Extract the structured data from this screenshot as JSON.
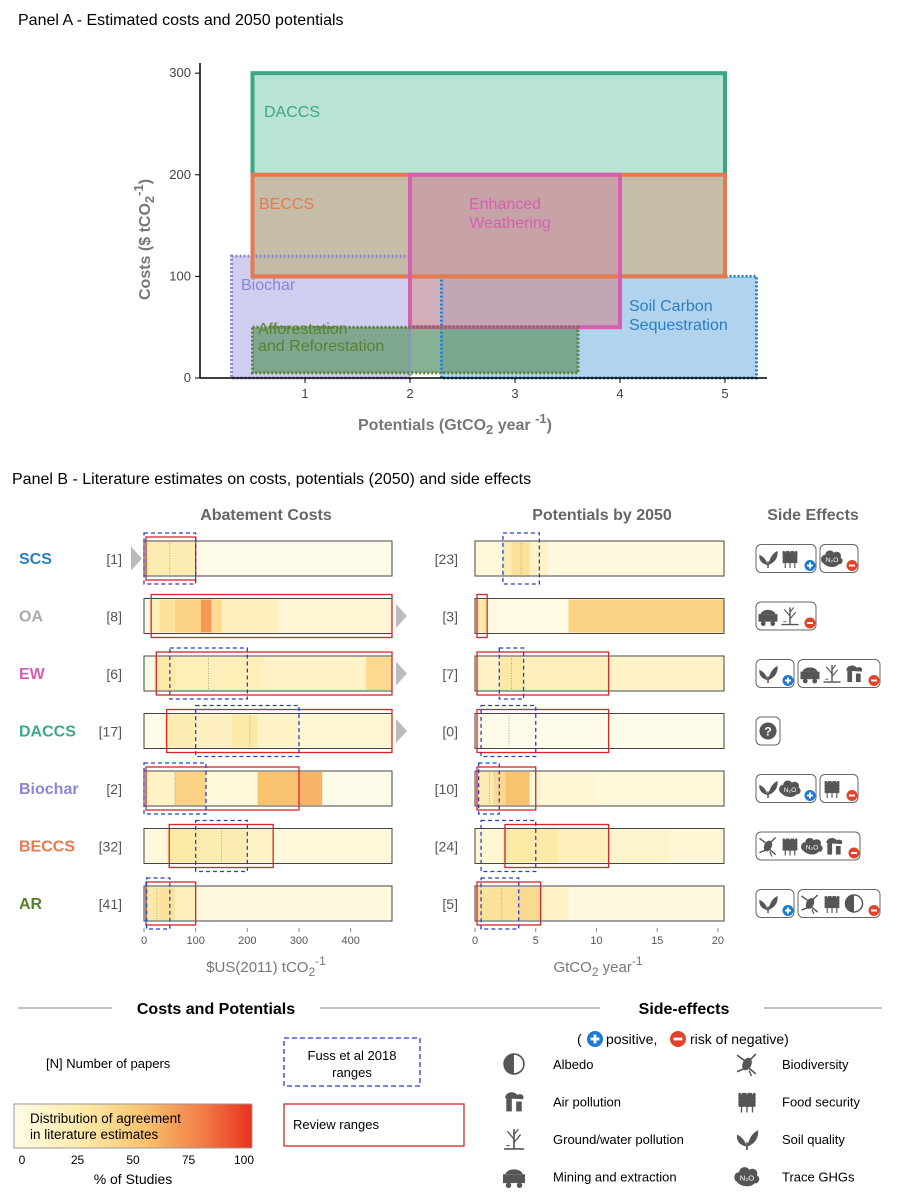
{
  "panel_a": {
    "title": "Panel A - Estimated costs and 2050 potentials",
    "xlabel_prefix": "Potentials (GtCO",
    "xlabel_sub": "2",
    "xlabel_suffix": " year ",
    "xlabel_sup": "-1",
    "xlabel_close": ")",
    "ylabel_prefix": "Costs ($ tCO",
    "ylabel_sub": "2",
    "ylabel_sup": "-1",
    "ylabel_close": ")"
  },
  "panel_b": {
    "title": "Panel B - Literature estimates on costs, potentials (2050) and side effects",
    "col_costs": "Abatement Costs",
    "col_potentials": "Potentials by 2050",
    "col_side": "Side Effects",
    "costs_axis_prefix": "$US(2011) tCO",
    "costs_axis_sub": "2",
    "costs_axis_sup": "-1",
    "pot_axis_prefix": "GtCO",
    "pot_axis_sub": "2",
    "pot_axis_suffix": " year",
    "pot_axis_sup": "-1"
  },
  "legend": {
    "costs_potentials_title": "Costs and Potentials",
    "side_effects_title": "Side-effects",
    "npapers": "[N] Number of papers",
    "fuss": "Fuss et al 2018 ranges",
    "fuss_line1": "Fuss et al 2018",
    "fuss_line2": "ranges",
    "review": "Review ranges",
    "distribution_line1": "Distribution of agreement",
    "distribution_line2": "in literature estimates",
    "gradient_ticks": [
      "0",
      "25",
      "50",
      "75",
      "100"
    ],
    "gradient_xlabel": "% of Studies",
    "pos_neg_open": "(",
    "pos_neg_positive": "positive,",
    "pos_neg_negative": "risk of negative)",
    "side_items_left": [
      "Albedo",
      "Air pollution",
      "Ground/water pollution",
      "Mining and extraction"
    ],
    "side_items_right": [
      "Biodiversity",
      "Food security",
      "Soil quality",
      "Trace GHGs"
    ],
    "n2o_label": "N₂O",
    "question_mark": "?"
  },
  "colors": {
    "DACCS": "#3aa885",
    "BECCS": "#e8784d",
    "EW": "#d65fb0",
    "Biochar": "#8a86d4",
    "SCS": "#2a7fc4",
    "AR": "#5a7f2e",
    "OA": "#aaaaaa",
    "review_red": "#d62728",
    "fuss_blue": "#2b3fc4",
    "positive": "#1a78d6",
    "negative": "#e0442a"
  },
  "chart_data": [
    {
      "type": "area",
      "name": "Panel A",
      "xlim": [
        0,
        5.4
      ],
      "ylim": [
        0,
        310
      ],
      "x_ticks": [
        1,
        2,
        3,
        4,
        5
      ],
      "y_ticks": [
        0,
        100,
        200,
        300
      ],
      "rects": [
        {
          "label": "Biochar",
          "x0": 0.3,
          "x1": 2.0,
          "y0": 0,
          "y1": 120,
          "style": "dotted",
          "color": "#8a86d4",
          "fill": "#c4c2ec"
        },
        {
          "label": "Soil Carbon Sequestration",
          "x0": 2.3,
          "x1": 5.3,
          "y0": 0,
          "y1": 100,
          "style": "dotted",
          "color": "#2a7fc4",
          "fill": "#9fc8e8"
        },
        {
          "label": "DACCS",
          "x0": 0.5,
          "x1": 5.0,
          "y0": 100,
          "y1": 300,
          "style": "solid",
          "color": "#3aa885",
          "fill": "#a8dcc8"
        },
        {
          "label": "BECCS",
          "x0": 0.5,
          "x1": 5.0,
          "y0": 100,
          "y1": 200,
          "style": "solid",
          "color": "#e8784d",
          "fill": "#c8b39e"
        },
        {
          "label": "Enhanced Weathering",
          "x0": 2.0,
          "x1": 4.0,
          "y0": 50,
          "y1": 200,
          "style": "solid",
          "color": "#d65fb0",
          "fill": "#c79ba6"
        },
        {
          "label": "Afforestation and Reforestation",
          "x0": 0.5,
          "x1": 3.6,
          "y0": 5,
          "y1": 50,
          "style": "dotted",
          "color": "#5a7f2e",
          "fill": "#6a9e78"
        }
      ],
      "labels": [
        "DACCS",
        "BECCS",
        "Enhanced",
        "Weathering",
        "Biochar",
        "Soil Carbon",
        "Sequestration",
        "Afforestation",
        "and Reforestation"
      ]
    },
    {
      "type": "heatmap",
      "name": "Panel B Abatement Costs",
      "xlim": [
        0,
        480
      ],
      "x_ticks": [
        0,
        100,
        200,
        300,
        400
      ],
      "rows": [
        {
          "code": "SCS",
          "n": "[1]",
          "review": [
            0,
            100
          ],
          "fuss": [
            0,
            100
          ],
          "median": 50,
          "arrow": "left",
          "bands": [
            [
              0,
              100,
              0.25
            ]
          ]
        },
        {
          "code": "OA",
          "n": "[8]",
          "review": [
            10,
            480
          ],
          "fuss": null,
          "median": 130,
          "arrow": "right",
          "bands": [
            [
              10,
              30,
              0.2
            ],
            [
              30,
              60,
              0.35
            ],
            [
              60,
              110,
              0.45
            ],
            [
              110,
              130,
              0.7
            ],
            [
              130,
              150,
              0.4
            ],
            [
              150,
              260,
              0.2
            ],
            [
              260,
              480,
              0.08
            ]
          ]
        },
        {
          "code": "EW",
          "n": "[6]",
          "review": [
            20,
            480
          ],
          "fuss": [
            50,
            200
          ],
          "median": 125,
          "arrow": "right",
          "bands": [
            [
              20,
              60,
              0.3
            ],
            [
              60,
              230,
              0.22
            ],
            [
              230,
              430,
              0.15
            ],
            [
              430,
              480,
              0.4
            ]
          ]
        },
        {
          "code": "DACCS",
          "n": "[17]",
          "review": [
            40,
            480
          ],
          "fuss": [
            100,
            300
          ],
          "median": 205,
          "arrow": "right",
          "bands": [
            [
              40,
              100,
              0.25
            ],
            [
              100,
              170,
              0.18
            ],
            [
              170,
              220,
              0.3
            ],
            [
              220,
              300,
              0.15
            ],
            [
              300,
              480,
              0.1
            ]
          ]
        },
        {
          "code": "Biochar",
          "n": "[2]",
          "review": [
            0,
            300
          ],
          "fuss": [
            0,
            120
          ],
          "median": 60,
          "arrow": null,
          "bands": [
            [
              0,
              60,
              0.15
            ],
            [
              60,
              120,
              0.45
            ],
            [
              120,
              220,
              0.05
            ],
            [
              220,
              300,
              0.55
            ],
            [
              300,
              345,
              0.6
            ]
          ]
        },
        {
          "code": "BECCS",
          "n": "[32]",
          "review": [
            45,
            250
          ],
          "fuss": [
            100,
            200
          ],
          "median": 150,
          "arrow": null,
          "bands": [
            [
              0,
              45,
              0.05
            ],
            [
              45,
              110,
              0.3
            ],
            [
              110,
              200,
              0.25
            ],
            [
              200,
              250,
              0.15
            ],
            [
              250,
              480,
              0.05
            ]
          ]
        },
        {
          "code": "AR",
          "n": "[41]",
          "review": [
            0,
            100
          ],
          "fuss": [
            5,
            50
          ],
          "median": 25,
          "arrow": null,
          "bands": [
            [
              0,
              30,
              0.3
            ],
            [
              30,
              60,
              0.35
            ],
            [
              60,
              100,
              0.2
            ],
            [
              100,
              480,
              0.04
            ]
          ]
        }
      ]
    },
    {
      "type": "heatmap",
      "name": "Panel B Potentials by 2050",
      "xlim": [
        0,
        20.5
      ],
      "x_ticks": [
        0,
        5,
        10,
        15,
        20
      ],
      "rows": [
        {
          "code": "SCS",
          "n": "[23]",
          "review": null,
          "fuss": [
            2.3,
            5.3
          ],
          "median": 3.8,
          "bands": [
            [
              0,
              2.3,
              0.05
            ],
            [
              2.3,
              3.0,
              0.25
            ],
            [
              3.0,
              4.5,
              0.35
            ],
            [
              4.5,
              6.0,
              0.15
            ],
            [
              6.0,
              20.5,
              0.04
            ]
          ]
        },
        {
          "code": "OA",
          "n": "[3]",
          "review": [
            0,
            1
          ],
          "fuss": null,
          "median": 1.0,
          "bands": [
            [
              0,
              1,
              0.3
            ],
            [
              1,
              7.7,
              0.02
            ],
            [
              7.7,
              20.5,
              0.45
            ]
          ]
        },
        {
          "code": "EW",
          "n": "[7]",
          "review": [
            0,
            11
          ],
          "fuss": [
            2,
            4
          ],
          "median": 3.0,
          "bands": [
            [
              0,
              2,
              0.15
            ],
            [
              2,
              4,
              0.3
            ],
            [
              4,
              11,
              0.2
            ],
            [
              11,
              20.5,
              0.15
            ]
          ]
        },
        {
          "code": "DACCS",
          "n": "[0]",
          "review": [
            0,
            11
          ],
          "fuss": [
            0.5,
            5
          ],
          "median": 2.8,
          "bands": []
        },
        {
          "code": "Biochar",
          "n": "[10]",
          "review": [
            0,
            5
          ],
          "fuss": [
            0.3,
            2
          ],
          "median": 1.2,
          "bands": [
            [
              0,
              1.5,
              0.25
            ],
            [
              1.5,
              2.5,
              0.4
            ],
            [
              2.5,
              4.5,
              0.55
            ],
            [
              4.5,
              10,
              0.08
            ],
            [
              10,
              20.5,
              0.05
            ]
          ]
        },
        {
          "code": "BECCS",
          "n": "[24]",
          "review": [
            2.3,
            11
          ],
          "fuss": [
            0.5,
            5
          ],
          "median": 2.5,
          "bands": [
            [
              0,
              2.3,
              0.1
            ],
            [
              2.3,
              6.8,
              0.3
            ],
            [
              6.8,
              11,
              0.2
            ],
            [
              11,
              16,
              0.12
            ],
            [
              16,
              20.5,
              0.08
            ]
          ]
        },
        {
          "code": "AR",
          "n": "[5]",
          "review": [
            0,
            5.4
          ],
          "fuss": [
            0.5,
            3.6
          ],
          "median": 2.2,
          "bands": [
            [
              0,
              3.6,
              0.35
            ],
            [
              3.6,
              5.4,
              0.4
            ],
            [
              5.4,
              7.7,
              0.15
            ],
            [
              7.7,
              20.5,
              0.03
            ]
          ]
        }
      ]
    }
  ],
  "side_effects": [
    {
      "code": "SCS",
      "groups": [
        {
          "icons": [
            "soil-quality",
            "food-security"
          ],
          "sign": "positive"
        },
        {
          "icons": [
            "trace-ghgs"
          ],
          "sign": "negative"
        }
      ]
    },
    {
      "code": "OA",
      "groups": [
        {
          "icons": [
            "mining",
            "ground-water-pollution"
          ],
          "sign": "negative"
        }
      ]
    },
    {
      "code": "EW",
      "groups": [
        {
          "icons": [
            "soil-quality"
          ],
          "sign": "positive"
        },
        {
          "icons": [
            "mining",
            "ground-water-pollution",
            "air-pollution"
          ],
          "sign": "negative"
        }
      ]
    },
    {
      "code": "DACCS",
      "groups": [
        {
          "icons": [
            "question"
          ],
          "sign": null
        }
      ]
    },
    {
      "code": "Biochar",
      "groups": [
        {
          "icons": [
            "soil-quality",
            "trace-ghgs"
          ],
          "sign": "positive"
        },
        {
          "icons": [
            "food-security"
          ],
          "sign": "negative"
        }
      ]
    },
    {
      "code": "BECCS",
      "groups": [
        {
          "icons": [
            "biodiversity",
            "food-security",
            "trace-ghgs",
            "air-pollution"
          ],
          "sign": "negative"
        }
      ]
    },
    {
      "code": "AR",
      "groups": [
        {
          "icons": [
            "soil-quality"
          ],
          "sign": "positive"
        },
        {
          "icons": [
            "biodiversity",
            "food-security",
            "albedo"
          ],
          "sign": "negative"
        }
      ]
    }
  ]
}
